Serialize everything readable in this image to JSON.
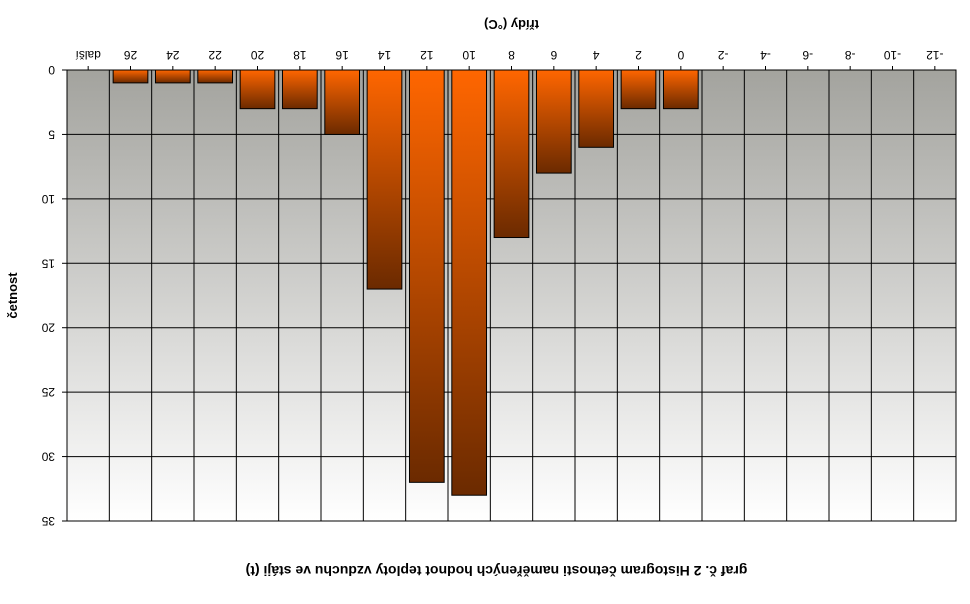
{
  "chart_data": {
    "type": "bar",
    "orientation": "mirrored-vertical",
    "title": "graf č. 2 Histogram četnosti naměřených hodnot teploty vzduchu ve stáji (t)",
    "xlabel": "třídy (°C)",
    "ylabel": "četnost",
    "categories": [
      "-12",
      "-10",
      "-8",
      "-6",
      "-4",
      "-2",
      "0",
      "2",
      "4",
      "6",
      "8",
      "10",
      "12",
      "14",
      "16",
      "18",
      "20",
      "22",
      "24",
      "26",
      "další"
    ],
    "series": [
      {
        "values": [
          0,
          0,
          0,
          0,
          0,
          0,
          3,
          3,
          6,
          8,
          13,
          33,
          32,
          17,
          5,
          3,
          3,
          1,
          1,
          1,
          0
        ]
      }
    ],
    "ylim": [
      0,
      35
    ],
    "yticks": [
      0,
      5,
      10,
      15,
      20,
      25,
      30,
      35
    ],
    "grid": true,
    "colors": {
      "bar_top": "#6b2a00",
      "bar_bottom": "#ff6600",
      "bar_edge": "#000000",
      "plot_top": "#ffffff",
      "plot_bottom": "#a3a39e"
    }
  }
}
